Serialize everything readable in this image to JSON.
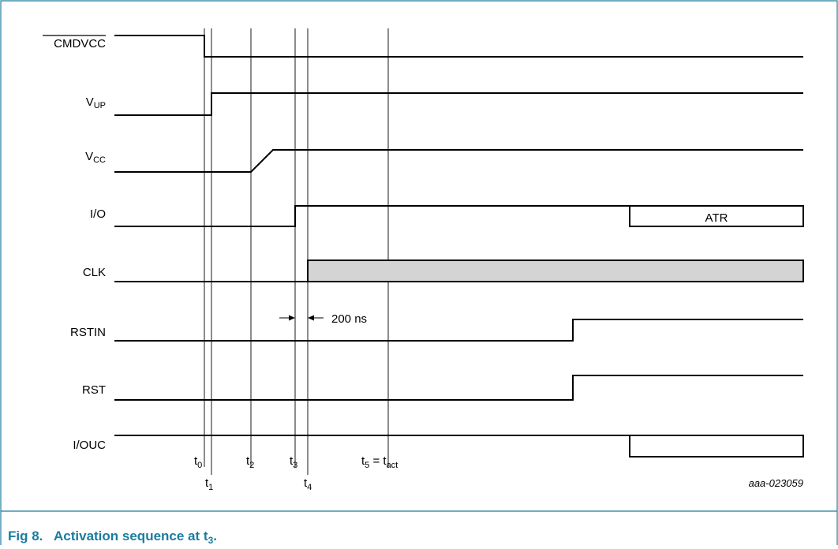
{
  "signals": {
    "cmdvcc": {
      "label": "CMDVCC"
    },
    "vup": {
      "main": "V",
      "sub": "UP"
    },
    "vcc": {
      "main": "V",
      "sub": "CC"
    },
    "io": {
      "label": "I/O"
    },
    "clk": {
      "label": "CLK"
    },
    "rstin": {
      "label": "RSTIN"
    },
    "rst": {
      "label": "RST"
    },
    "iouc": {
      "label": "I/OUC"
    }
  },
  "times": {
    "t0": {
      "main": "t",
      "sub": "0"
    },
    "t1": {
      "main": "t",
      "sub": "1"
    },
    "t2": {
      "main": "t",
      "sub": "2"
    },
    "t3": {
      "main": "t",
      "sub": "3"
    },
    "t4": {
      "main": "t",
      "sub": "4"
    },
    "t5": {
      "main": "t",
      "sub": "5",
      "eq": " = t",
      "eqsub": "act"
    }
  },
  "atr_label": "ATR",
  "delay_label": "200 ns",
  "reference": "aaa-023059",
  "caption": {
    "number": "Fig 8.",
    "text": "Activation sequence at t",
    "sub": "3",
    "end": "."
  },
  "colors": {
    "accent": "#1a7ca0",
    "clk_fill": "#d4d4d4",
    "line": "#000000"
  }
}
